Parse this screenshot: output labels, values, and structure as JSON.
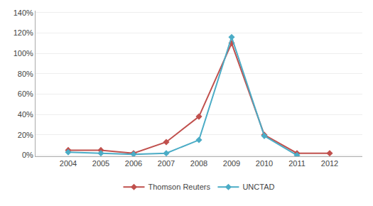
{
  "chart_data": {
    "type": "line",
    "series": [
      {
        "name": "Thomson Reuters",
        "color": "#C0504D",
        "marker": "diamond",
        "x": [
          2004,
          2005,
          2006,
          2007,
          2008,
          2009,
          2010,
          2011,
          2012
        ],
        "values": [
          0.05,
          0.05,
          0.02,
          0.13,
          0.38,
          1.1,
          0.2,
          0.02,
          0.02
        ]
      },
      {
        "name": "UNCTAD",
        "color": "#4BACC6",
        "marker": "diamond",
        "x": [
          2004,
          2005,
          2006,
          2007,
          2008,
          2009,
          2010,
          2011
        ],
        "values": [
          0.03,
          0.02,
          0.01,
          0.02,
          0.15,
          1.16,
          0.19,
          0.0
        ]
      }
    ],
    "xlim": [
      2003,
      2013
    ],
    "xticks": [
      2004,
      2005,
      2006,
      2007,
      2008,
      2009,
      2010,
      2011,
      2012
    ],
    "ylim": [
      -0.01,
      1.42
    ],
    "yticks": [
      {
        "value": 0.0,
        "label": "0%"
      },
      {
        "value": 0.2,
        "label": "20%"
      },
      {
        "value": 0.4,
        "label": "40%"
      },
      {
        "value": 0.6,
        "label": "60%"
      },
      {
        "value": 0.8,
        "label": "80%"
      },
      {
        "value": 1.0,
        "label": "100%"
      },
      {
        "value": 1.2,
        "label": "120%"
      },
      {
        "value": 1.4,
        "label": "140%"
      }
    ],
    "grid": true,
    "legend": "bottom"
  }
}
